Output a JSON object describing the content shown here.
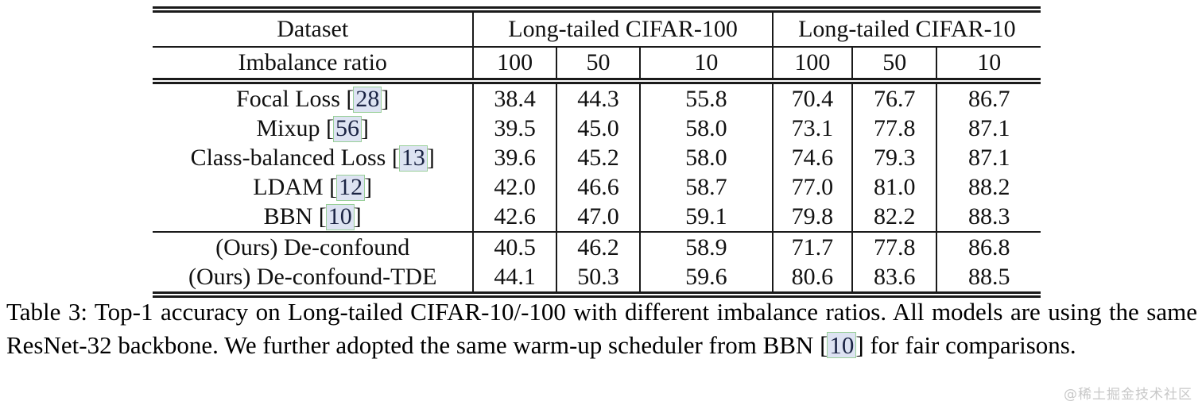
{
  "colors": {
    "cite_box_bg": "#dde3f2",
    "cite_box_border": "#99cf99",
    "cite_text": "#1b2444",
    "rule": "#1a1a1a",
    "watermark_text": "#c8c8c8",
    "background": "#ffffff"
  },
  "table": {
    "header": {
      "dataset_label": "Dataset",
      "groups": [
        {
          "label": "Long-tailed CIFAR-100"
        },
        {
          "label": "Long-tailed CIFAR-10"
        }
      ],
      "imbalance_label": "Imbalance ratio",
      "ratios": [
        "100",
        "50",
        "10",
        "100",
        "50",
        "10"
      ]
    },
    "cite_open": "[",
    "cite_close": "]",
    "rows": [
      {
        "method": "Focal Loss",
        "cite": "28",
        "values": [
          "38.4",
          "44.3",
          "55.8",
          "70.4",
          "76.7",
          "86.7"
        ],
        "bold": false,
        "section": "baselines"
      },
      {
        "method": "Mixup",
        "cite": "56",
        "values": [
          "39.5",
          "45.0",
          "58.0",
          "73.1",
          "77.8",
          "87.1"
        ],
        "bold": false,
        "section": "baselines"
      },
      {
        "method": "Class-balanced Loss",
        "cite": "13",
        "values": [
          "39.6",
          "45.2",
          "58.0",
          "74.6",
          "79.3",
          "87.1"
        ],
        "bold": false,
        "section": "baselines"
      },
      {
        "method": "LDAM",
        "cite": "12",
        "values": [
          "42.0",
          "46.6",
          "58.7",
          "77.0",
          "81.0",
          "88.2"
        ],
        "bold": false,
        "section": "baselines"
      },
      {
        "method": "BBN",
        "cite": "10",
        "values": [
          "42.6",
          "47.0",
          "59.1",
          "79.8",
          "82.2",
          "88.3"
        ],
        "bold": false,
        "section": "baselines"
      },
      {
        "method": "(Ours) De-confound",
        "cite": null,
        "values": [
          "40.5",
          "46.2",
          "58.9",
          "71.7",
          "77.8",
          "86.8"
        ],
        "bold": false,
        "section": "ours"
      },
      {
        "method": "(Ours) De-confound-TDE",
        "cite": null,
        "values": [
          "44.1",
          "50.3",
          "59.6",
          "80.6",
          "83.6",
          "88.5"
        ],
        "bold": true,
        "section": "ours"
      }
    ]
  },
  "caption": {
    "text_before": "Table 3: Top-1 accuracy on Long-tailed CIFAR-10/-100 with different imbalance ratios. All models are using the same ResNet-32 backbone. We further adopted the same warm-up scheduler from BBN ",
    "cite_open": "[",
    "cite": "10",
    "cite_close": "]",
    "text_after": " for fair comparisons."
  },
  "watermark": "@稀土掘金技术社区"
}
